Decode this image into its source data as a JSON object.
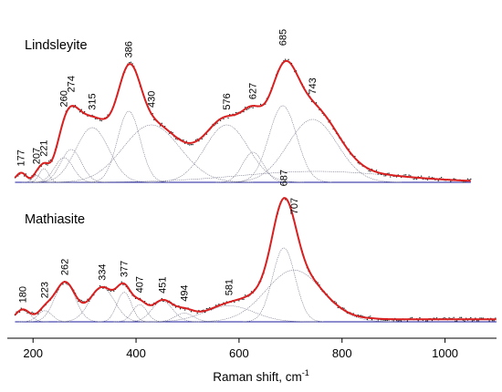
{
  "chart_data": {
    "type": "line",
    "xlabel": "Raman shift, cm",
    "xlabel_superscript": "-1",
    "xlim": [
      150,
      1100
    ],
    "x_ticks": [
      200,
      400,
      600,
      800,
      1000
    ],
    "x_tick_labels": [
      "200",
      "400",
      "600",
      "800",
      "1000"
    ],
    "colors": {
      "fit": "#d91f1f",
      "components": "#707086",
      "baseline": "#1a1a9c",
      "data": "#222222"
    },
    "panels": [
      {
        "name": "Lindsleyite",
        "x_end": 1050,
        "peak_labels": [
          "177",
          "207",
          "221",
          "260",
          "274",
          "315",
          "386",
          "430",
          "576",
          "627",
          "685",
          "743"
        ],
        "peak_positions": [
          177,
          207,
          221,
          260,
          274,
          315,
          386,
          430,
          576,
          627,
          685,
          743
        ],
        "components": [
          {
            "center": 177,
            "height": 0.07,
            "width": 10
          },
          {
            "center": 207,
            "height": 0.05,
            "width": 8
          },
          {
            "center": 221,
            "height": 0.1,
            "width": 9
          },
          {
            "center": 260,
            "height": 0.18,
            "width": 18
          },
          {
            "center": 274,
            "height": 0.24,
            "width": 20
          },
          {
            "center": 315,
            "height": 0.4,
            "width": 32
          },
          {
            "center": 386,
            "height": 0.52,
            "width": 22
          },
          {
            "center": 430,
            "height": 0.42,
            "width": 55
          },
          {
            "center": 576,
            "height": 0.42,
            "width": 42
          },
          {
            "center": 627,
            "height": 0.22,
            "width": 20
          },
          {
            "center": 685,
            "height": 0.56,
            "width": 27
          },
          {
            "center": 743,
            "height": 0.46,
            "width": 48
          },
          {
            "center": 750,
            "height": 0.08,
            "width": 150
          }
        ]
      },
      {
        "name": "Mathiasite",
        "x_end": 1100,
        "peak_labels": [
          "180",
          "223",
          "262",
          "334",
          "377",
          "407",
          "451",
          "494",
          "581",
          "687",
          "707"
        ],
        "peak_positions": [
          180,
          223,
          262,
          334,
          377,
          407,
          451,
          494,
          581,
          687,
          707
        ],
        "components": [
          {
            "center": 180,
            "height": 0.1,
            "width": 14
          },
          {
            "center": 223,
            "height": 0.09,
            "width": 14
          },
          {
            "center": 262,
            "height": 0.32,
            "width": 20
          },
          {
            "center": 334,
            "height": 0.28,
            "width": 24
          },
          {
            "center": 377,
            "height": 0.24,
            "width": 14
          },
          {
            "center": 407,
            "height": 0.14,
            "width": 14
          },
          {
            "center": 451,
            "height": 0.17,
            "width": 20
          },
          {
            "center": 494,
            "height": 0.07,
            "width": 18
          },
          {
            "center": 581,
            "height": 0.13,
            "width": 48
          },
          {
            "center": 687,
            "height": 0.6,
            "width": 22
          },
          {
            "center": 707,
            "height": 0.42,
            "width": 55
          }
        ]
      }
    ]
  }
}
